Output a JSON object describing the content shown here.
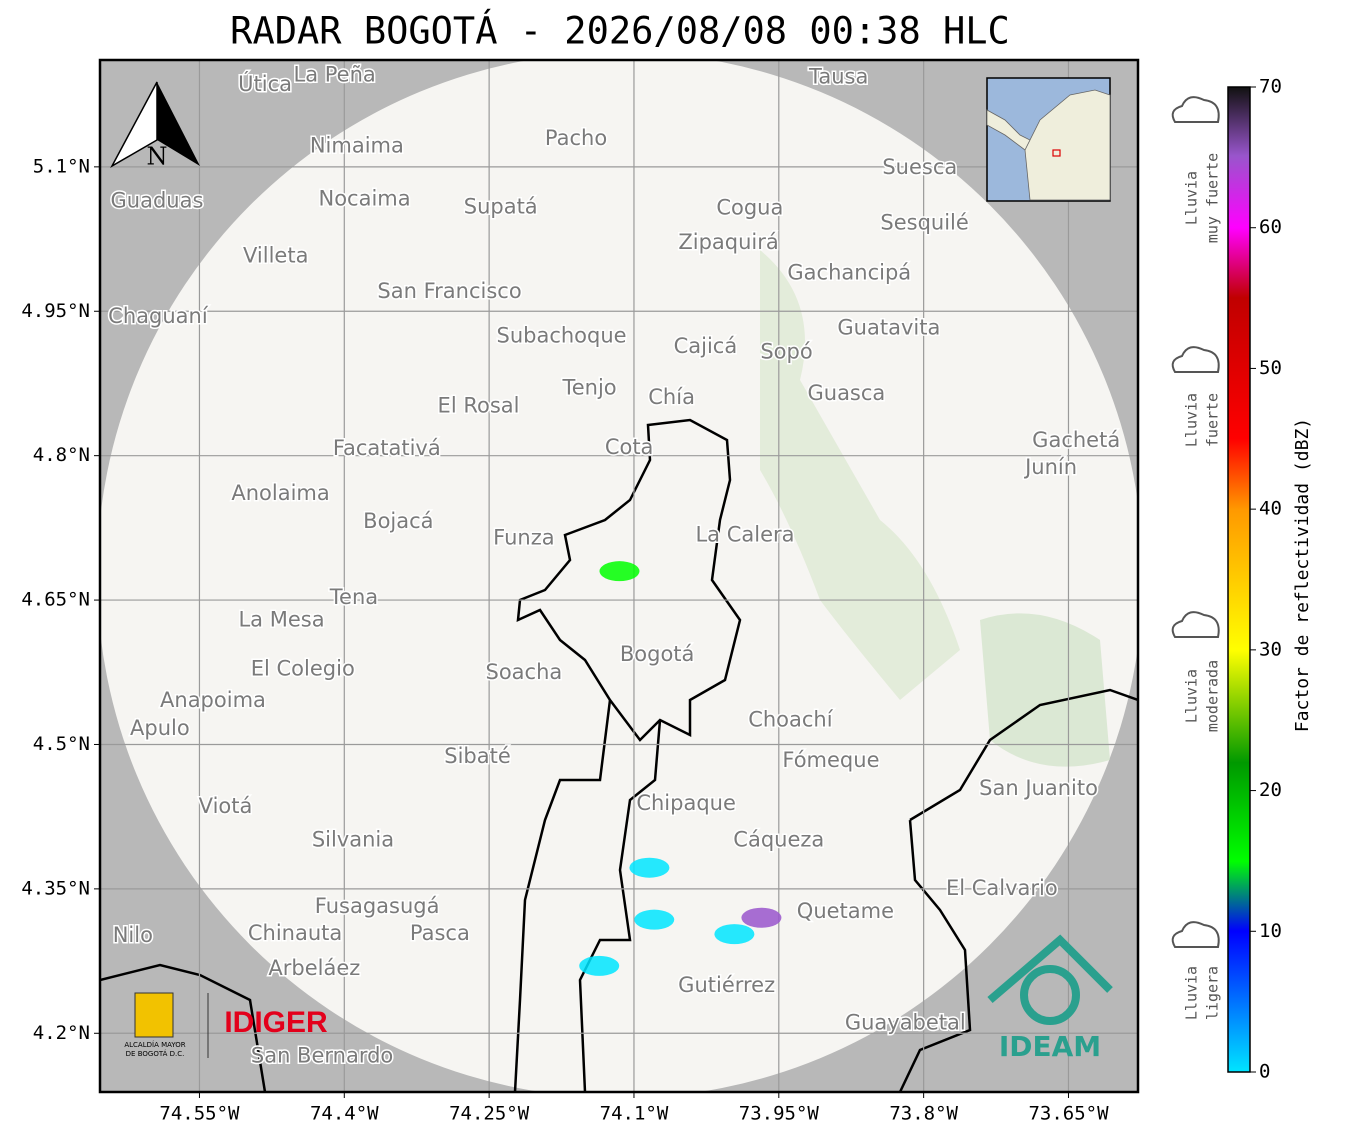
{
  "chart_data": {
    "type": "radar-map",
    "title": "RADAR BOGOTÁ - 2026/08/08 00:38 HLC",
    "xlim": [
      -74.653,
      -73.578
    ],
    "ylim": [
      4.139,
      5.211
    ],
    "xticks": [
      {
        "value": -74.55,
        "label": "74.55°W"
      },
      {
        "value": -74.4,
        "label": "74.4°W"
      },
      {
        "value": -74.25,
        "label": "74.25°W"
      },
      {
        "value": -74.1,
        "label": "74.1°W"
      },
      {
        "value": -73.95,
        "label": "73.95°W"
      },
      {
        "value": -73.8,
        "label": "73.8°W"
      },
      {
        "value": -73.65,
        "label": "73.65°W"
      }
    ],
    "yticks": [
      {
        "value": 4.2,
        "label": "4.2°N"
      },
      {
        "value": 4.35,
        "label": "4.35°N"
      },
      {
        "value": 4.5,
        "label": "4.5°N"
      },
      {
        "value": 4.65,
        "label": "4.65°N"
      },
      {
        "value": 4.8,
        "label": "4.8°N"
      },
      {
        "value": 4.95,
        "label": "4.95°N"
      },
      {
        "value": 5.1,
        "label": "5.1°N"
      }
    ],
    "grid": true,
    "places": [
      {
        "name": "Útica",
        "lon": -74.482,
        "lat": 5.185
      },
      {
        "name": "La Peña",
        "lon": -74.41,
        "lat": 5.195
      },
      {
        "name": "Tausa",
        "lon": -73.888,
        "lat": 5.193
      },
      {
        "name": "Pacho",
        "lon": -74.16,
        "lat": 5.129
      },
      {
        "name": "Nimaima",
        "lon": -74.387,
        "lat": 5.121
      },
      {
        "name": "Guaduas",
        "lon": -74.594,
        "lat": 5.064
      },
      {
        "name": "Nocaima",
        "lon": -74.379,
        "lat": 5.066
      },
      {
        "name": "Supatá",
        "lon": -74.238,
        "lat": 5.058
      },
      {
        "name": "Cogua",
        "lon": -73.98,
        "lat": 5.057
      },
      {
        "name": "Suesca",
        "lon": -73.804,
        "lat": 5.099
      },
      {
        "name": "Sesquilé",
        "lon": -73.799,
        "lat": 5.041
      },
      {
        "name": "Zipaquirá",
        "lon": -74.002,
        "lat": 5.021
      },
      {
        "name": "Villeta",
        "lon": -74.471,
        "lat": 5.007
      },
      {
        "name": "Gachancipá",
        "lon": -73.877,
        "lat": 4.989
      },
      {
        "name": "San Francisco",
        "lon": -74.291,
        "lat": 4.97
      },
      {
        "name": "Chaguaní",
        "lon": -74.593,
        "lat": 4.944
      },
      {
        "name": "Guatavita",
        "lon": -73.836,
        "lat": 4.932
      },
      {
        "name": "Subachoque",
        "lon": -74.175,
        "lat": 4.924
      },
      {
        "name": "Cajicá",
        "lon": -74.026,
        "lat": 4.913
      },
      {
        "name": "Sopó",
        "lon": -73.942,
        "lat": 4.907
      },
      {
        "name": "Tenjo",
        "lon": -74.146,
        "lat": 4.87
      },
      {
        "name": "Chía",
        "lon": -74.061,
        "lat": 4.86
      },
      {
        "name": "El Rosal",
        "lon": -74.261,
        "lat": 4.851
      },
      {
        "name": "Guasca",
        "lon": -73.88,
        "lat": 4.864
      },
      {
        "name": "Facatativá",
        "lon": -74.356,
        "lat": 4.807
      },
      {
        "name": "Cota",
        "lon": -74.105,
        "lat": 4.808
      },
      {
        "name": "Gachetá",
        "lon": -73.642,
        "lat": 4.815
      },
      {
        "name": "Junín",
        "lon": -73.668,
        "lat": 4.787
      },
      {
        "name": "Anolaima",
        "lon": -74.466,
        "lat": 4.76
      },
      {
        "name": "Bojacá",
        "lon": -74.344,
        "lat": 4.731
      },
      {
        "name": "Funza",
        "lon": -74.214,
        "lat": 4.714
      },
      {
        "name": "La Calera",
        "lon": -73.985,
        "lat": 4.717
      },
      {
        "name": "Tena",
        "lon": -74.39,
        "lat": 4.652
      },
      {
        "name": "La Mesa",
        "lon": -74.465,
        "lat": 4.629
      },
      {
        "name": "Bogotá",
        "lon": -74.076,
        "lat": 4.593
      },
      {
        "name": "Soacha",
        "lon": -74.214,
        "lat": 4.574
      },
      {
        "name": "El Colegio",
        "lon": -74.443,
        "lat": 4.578
      },
      {
        "name": "Anapoima",
        "lon": -74.536,
        "lat": 4.545
      },
      {
        "name": "Apulo",
        "lon": -74.591,
        "lat": 4.516
      },
      {
        "name": "Choachí",
        "lon": -73.938,
        "lat": 4.525
      },
      {
        "name": "Sibaté",
        "lon": -74.262,
        "lat": 4.487
      },
      {
        "name": "Fómeque",
        "lon": -73.896,
        "lat": 4.483
      },
      {
        "name": "San Juanito",
        "lon": -73.681,
        "lat": 4.454
      },
      {
        "name": "Viotá",
        "lon": -74.523,
        "lat": 4.435
      },
      {
        "name": "Chipaque",
        "lon": -74.046,
        "lat": 4.438
      },
      {
        "name": "Silvania",
        "lon": -74.391,
        "lat": 4.4
      },
      {
        "name": "Cáqueza",
        "lon": -73.95,
        "lat": 4.4
      },
      {
        "name": "El Calvario",
        "lon": -73.719,
        "lat": 4.35
      },
      {
        "name": "Fusagasugá",
        "lon": -74.366,
        "lat": 4.331
      },
      {
        "name": "Quetame",
        "lon": -73.881,
        "lat": 4.326
      },
      {
        "name": "Nilo",
        "lon": -74.619,
        "lat": 4.301
      },
      {
        "name": "Chinauta",
        "lon": -74.451,
        "lat": 4.303
      },
      {
        "name": "Pasca",
        "lon": -74.301,
        "lat": 4.303
      },
      {
        "name": "Arbeláez",
        "lon": -74.431,
        "lat": 4.267
      },
      {
        "name": "Gutiérrez",
        "lon": -74.004,
        "lat": 4.249
      },
      {
        "name": "Guayabetal",
        "lon": -73.819,
        "lat": 4.21
      },
      {
        "name": "San Bernardo",
        "lon": -74.423,
        "lat": 4.176
      }
    ],
    "echoes": [
      {
        "lon": -74.115,
        "lat": 4.68,
        "dbz": 18
      },
      {
        "lon": -74.084,
        "lat": 4.372,
        "dbz": 8
      },
      {
        "lon": -74.079,
        "lat": 4.318,
        "dbz": 8
      },
      {
        "lon": -73.996,
        "lat": 4.303,
        "dbz": 8
      },
      {
        "lon": -73.968,
        "lat": 4.32,
        "dbz": 68
      },
      {
        "lon": -74.136,
        "lat": 4.27,
        "dbz": 9
      }
    ],
    "colorbar": {
      "label": "Factor de reflectividad (dBZ)",
      "lim": [
        0,
        70
      ],
      "ticks": [
        0,
        10,
        20,
        30,
        40,
        50,
        60,
        70
      ]
    },
    "rain_categories": [
      [
        "Lluvia",
        "muy fuerte"
      ],
      [
        "Lluvia",
        "fuerte"
      ],
      [
        "Lluvia",
        "moderada"
      ],
      [
        "Lluvia",
        "ligera"
      ]
    ],
    "north": "N",
    "logos": {
      "alcaldia": [
        "ALCALDÍA MAYOR",
        "DE BOGOTÁ D.C."
      ],
      "idiger": "IDIGER",
      "ideam": "IDEAM"
    }
  }
}
